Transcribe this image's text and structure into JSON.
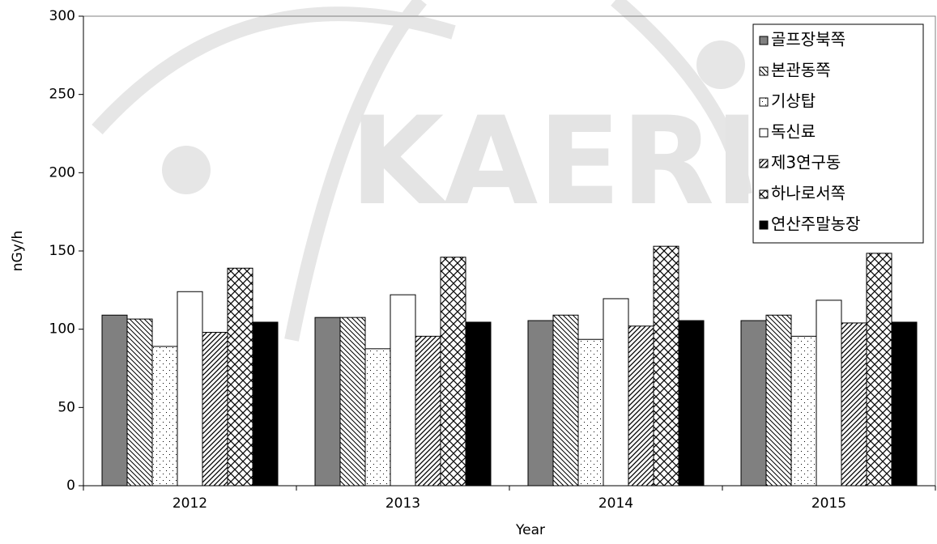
{
  "chart_data": {
    "type": "bar",
    "watermark": "KAERI",
    "x_label": "Year",
    "y_label": "nGy/h",
    "categories": [
      "2012",
      "2013",
      "2014",
      "2015"
    ],
    "series": [
      {
        "name": "골프장북쪽",
        "color": "#808080",
        "pattern": "solid",
        "values": [
          109,
          107.5,
          105.5,
          105.5
        ]
      },
      {
        "name": "본관동쪽",
        "color": "#ffffff",
        "pattern": "backslash",
        "values": [
          106.5,
          107.5,
          109,
          109
        ]
      },
      {
        "name": "기상탑",
        "color": "#ffffff",
        "pattern": "dots",
        "values": [
          89,
          87.5,
          93.5,
          95.5
        ]
      },
      {
        "name": "독신료",
        "color": "#ffffff",
        "pattern": "solid",
        "values": [
          124,
          122,
          119.5,
          118.5
        ]
      },
      {
        "name": "제3연구동",
        "color": "#ffffff",
        "pattern": "slash",
        "values": [
          98,
          95.5,
          102,
          104
        ]
      },
      {
        "name": "하나로서쪽",
        "color": "#ffffff",
        "pattern": "cross",
        "values": [
          139,
          146,
          153,
          148.5
        ]
      },
      {
        "name": "연산주말농장",
        "color": "#000000",
        "pattern": "solid",
        "values": [
          104.5,
          104.5,
          105.5,
          104.5
        ]
      }
    ],
    "ylim": [
      0,
      300
    ],
    "yticks": [
      0,
      50,
      100,
      150,
      200,
      250,
      300
    ],
    "grid": false,
    "legend": "upper right"
  }
}
